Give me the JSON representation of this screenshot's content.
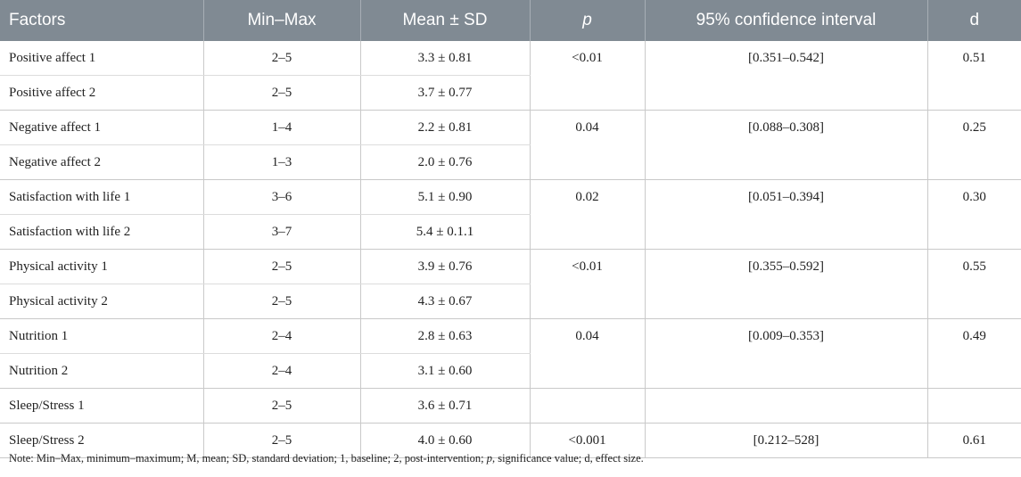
{
  "headers": {
    "factors": "Factors",
    "minmax": "Min–Max",
    "mean_sd": "Mean ± SD",
    "p": "p",
    "ci": "95% confidence interval",
    "d": "d"
  },
  "groups": [
    {
      "rows": [
        {
          "factor": "Positive affect 1",
          "minmax": "2–5",
          "mean_sd": "3.3 ± 0.81"
        },
        {
          "factor": "Positive affect 2",
          "minmax": "2–5",
          "mean_sd": "3.7 ± 0.77"
        }
      ],
      "p": "<0.01",
      "ci": "[0.351–0.542]",
      "d": "0.51"
    },
    {
      "rows": [
        {
          "factor": "Negative affect 1",
          "minmax": "1–4",
          "mean_sd": "2.2 ± 0.81"
        },
        {
          "factor": "Negative affect 2",
          "minmax": "1–3",
          "mean_sd": "2.0 ± 0.76"
        }
      ],
      "p": "0.04",
      "ci": "[0.088–0.308]",
      "d": "0.25"
    },
    {
      "rows": [
        {
          "factor": "Satisfaction with life 1",
          "minmax": "3–6",
          "mean_sd": "5.1 ± 0.90"
        },
        {
          "factor": "Satisfaction with life 2",
          "minmax": "3–7",
          "mean_sd": "5.4 ± 0.1.1"
        }
      ],
      "p": "0.02",
      "ci": "[0.051–0.394]",
      "d": "0.30"
    },
    {
      "rows": [
        {
          "factor": "Physical activity 1",
          "minmax": "2–5",
          "mean_sd": "3.9 ± 0.76"
        },
        {
          "factor": "Physical activity 2",
          "minmax": "2–5",
          "mean_sd": "4.3 ± 0.67"
        }
      ],
      "p": "<0.01",
      "ci": "[0.355–0.592]",
      "d": "0.55"
    },
    {
      "rows": [
        {
          "factor": "Nutrition 1",
          "minmax": "2–4",
          "mean_sd": "2.8 ± 0.63"
        },
        {
          "factor": "Nutrition 2",
          "minmax": "2–4",
          "mean_sd": "3.1 ± 0.60"
        }
      ],
      "p": "0.04",
      "ci": "[0.009–0.353]",
      "d": "0.49"
    }
  ],
  "sleep_rows": [
    {
      "factor": "Sleep/Stress 1",
      "minmax": "2–5",
      "mean_sd": "3.6 ± 0.71",
      "p": "",
      "ci": "",
      "d": ""
    },
    {
      "factor": "Sleep/Stress 2",
      "minmax": "2–5",
      "mean_sd": "4.0 ± 0.60",
      "p": "<0.001",
      "ci": "[0.212–528]",
      "d": "0.61"
    }
  ],
  "note": {
    "text_1": "Note: Min–Max, minimum–maximum; M, mean; SD, standard deviation; 1, baseline; 2, post-intervention; ",
    "p_symbol": "p",
    "text_2": ", significance value; d, effect size."
  },
  "colors": {
    "header_bg": "#808a93",
    "header_text": "#ffffff",
    "grid": "#c9c9c9"
  }
}
